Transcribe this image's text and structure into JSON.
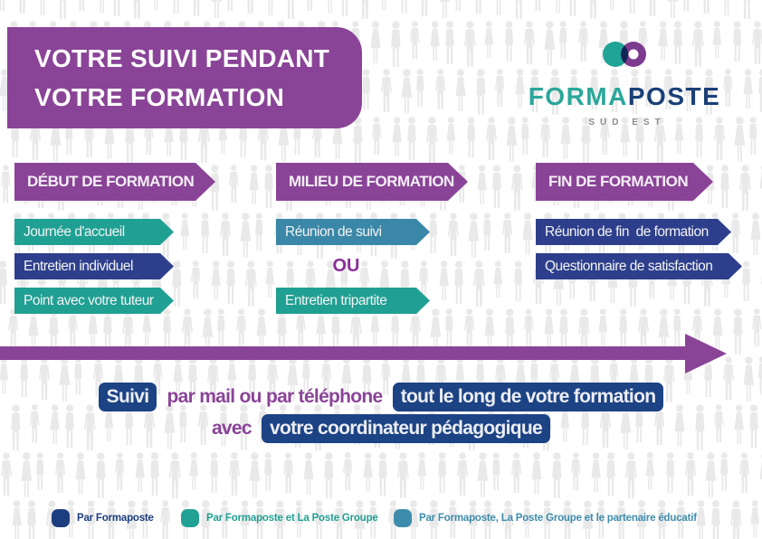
{
  "header": {
    "title_line1": "VOTRE SUIVI PENDANT",
    "title_line2": "VOTRE FORMATION"
  },
  "logo": {
    "brand_part1": "FORMA",
    "brand_part2": "POSTE",
    "region": "SUD EST"
  },
  "columns": [
    {
      "header": "DÉBUT DE FORMATION",
      "items": [
        {
          "label": "Journée d'accueil",
          "provider": "Par Formaposte et La Poste Groupe"
        },
        {
          "label": "Entretien individuel",
          "provider": "Par Formaposte"
        },
        {
          "label": "Point avec votre tuteur",
          "provider": "Par Formaposte et La Poste Groupe"
        }
      ]
    },
    {
      "header": "MILIEU DE FORMATION",
      "connector": "OU",
      "items": [
        {
          "label": "Réunion de suivi",
          "provider": "Par Formaposte, La Poste Groupe et le partenaire éducatif"
        },
        {
          "label": "Entretien tripartite",
          "provider": "Par Formaposte et La Poste Groupe"
        }
      ]
    },
    {
      "header": "FIN DE FORMATION",
      "items": [
        {
          "label": "Réunion de fin  de formation",
          "provider": "Par Formaposte"
        },
        {
          "label": "Questionnaire de satisfaction",
          "provider": "Par Formaposte"
        }
      ]
    }
  ],
  "note": {
    "line1": [
      {
        "text": "Suivi",
        "style": "box"
      },
      {
        "text": "par mail ou par téléphone",
        "style": "plain"
      },
      {
        "text": "tout le long de votre formation",
        "style": "box"
      }
    ],
    "line2": [
      {
        "text": "avec",
        "style": "plain"
      },
      {
        "text": "votre coordinateur pédagogique",
        "style": "box"
      }
    ]
  },
  "legend": {
    "items": [
      {
        "label": "Par Formaposte",
        "color": "#1C3E7E"
      },
      {
        "label": "Par Formaposte et La Poste Groupe",
        "color": "#21A193"
      },
      {
        "label": "Par Formaposte, La Poste Groupe et le partenaire éducatif",
        "color": "#3E8CAC"
      }
    ]
  },
  "colors": {
    "purple": "#8A4497",
    "teal": "#1FA093",
    "navy_item": "#2D3F8C",
    "steel_blue": "#3A87A8",
    "note_box_navy": "#1C4384",
    "logo_teal": "#2AA79B",
    "logo_navy": "#1B4077",
    "region_gray": "#8C8C8C",
    "silhouette_gray": "#E9E9E9"
  }
}
